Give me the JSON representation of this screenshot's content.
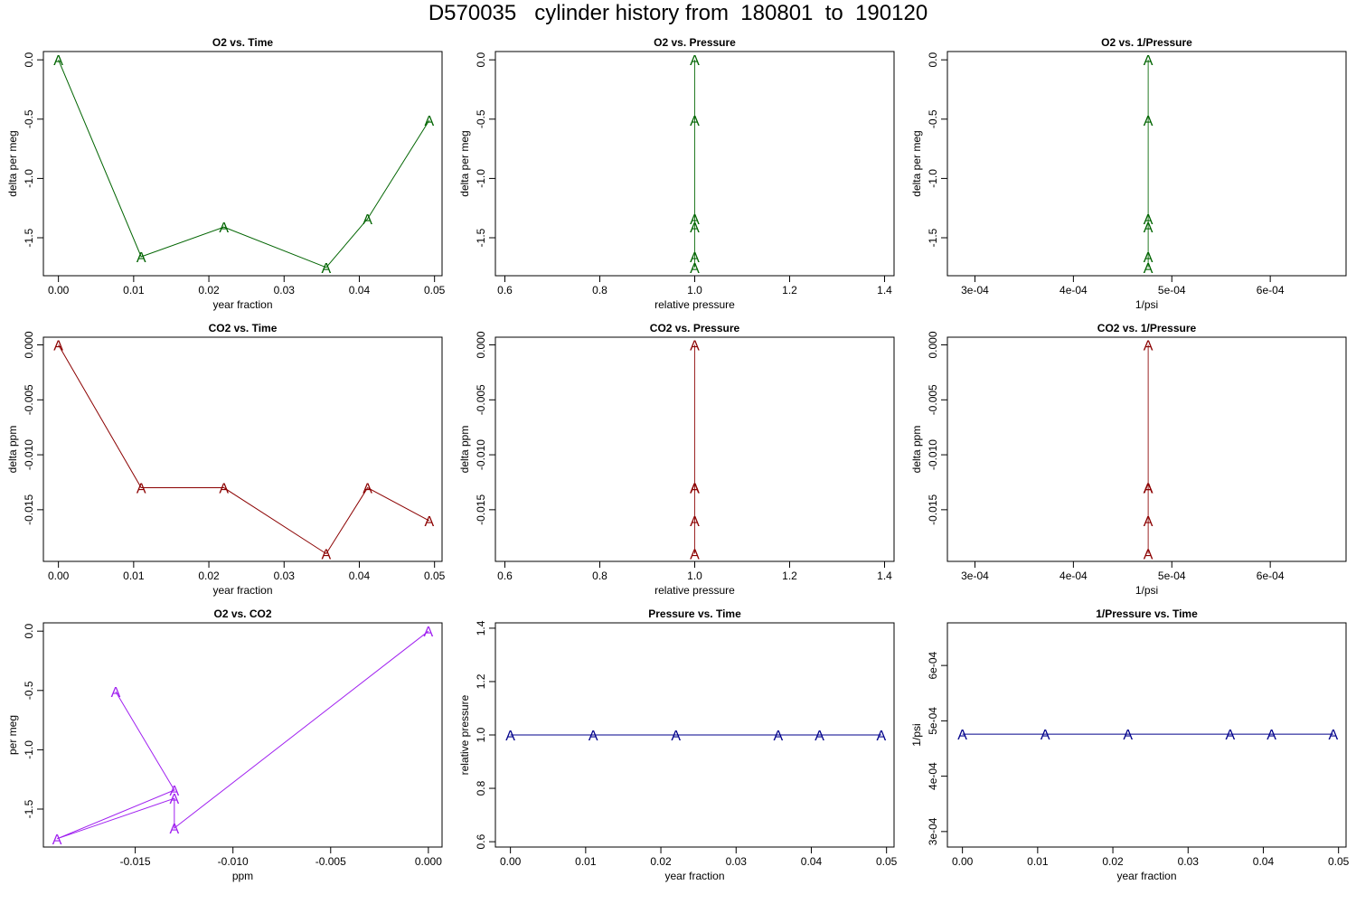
{
  "title": "D570035   cylinder history from  180801  to  190120",
  "colors": {
    "o2": "#006400",
    "co2": "#8b0000",
    "o2co2": "#a020f0",
    "pressure": "#00008b",
    "axis": "#000000"
  },
  "chart_data": [
    {
      "type": "scatter",
      "title": "O2 vs. Time",
      "xlabel": "year fraction",
      "ylabel": "delta per meg",
      "xlim": [
        -0.002,
        0.051
      ],
      "ylim": [
        -1.82,
        0.07
      ],
      "xticks": [
        {
          "v": 0.0,
          "label": "0.00"
        },
        {
          "v": 0.01,
          "label": "0.01"
        },
        {
          "v": 0.02,
          "label": "0.02"
        },
        {
          "v": 0.03,
          "label": "0.03"
        },
        {
          "v": 0.04,
          "label": "0.04"
        },
        {
          "v": 0.05,
          "label": "0.05"
        }
      ],
      "yticks": [
        {
          "v": 0.0,
          "label": "0.0"
        },
        {
          "v": -0.5,
          "label": "-0.5"
        },
        {
          "v": -1.0,
          "label": "-1.0"
        },
        {
          "v": -1.5,
          "label": "-1.5"
        }
      ],
      "marker": "A",
      "color_key": "o2",
      "x": [
        0.0,
        0.011,
        0.022,
        0.0356,
        0.0411,
        0.0493
      ],
      "y": [
        0.0,
        -1.66,
        -1.41,
        -1.75,
        -1.34,
        -0.51
      ]
    },
    {
      "type": "scatter",
      "title": "O2 vs. Pressure",
      "xlabel": "relative pressure",
      "ylabel": "delta per meg",
      "xlim": [
        0.58,
        1.42
      ],
      "ylim": [
        -1.82,
        0.07
      ],
      "xticks": [
        {
          "v": 0.6,
          "label": "0.6"
        },
        {
          "v": 0.8,
          "label": "0.8"
        },
        {
          "v": 1.0,
          "label": "1.0"
        },
        {
          "v": 1.2,
          "label": "1.2"
        },
        {
          "v": 1.4,
          "label": "1.4"
        }
      ],
      "yticks": [
        {
          "v": 0.0,
          "label": "0.0"
        },
        {
          "v": -0.5,
          "label": "-0.5"
        },
        {
          "v": -1.0,
          "label": "-1.0"
        },
        {
          "v": -1.5,
          "label": "-1.5"
        }
      ],
      "marker": "A",
      "color_key": "o2",
      "x": [
        1.0,
        1.0,
        1.0,
        1.0,
        1.0,
        1.0
      ],
      "y": [
        0.0,
        -1.66,
        -1.41,
        -1.75,
        -1.34,
        -0.51
      ]
    },
    {
      "type": "scatter",
      "title": "O2 vs. 1/Pressure",
      "xlabel": "1/psi",
      "ylabel": "delta per meg",
      "xlim": [
        0.000272,
        0.000677
      ],
      "ylim": [
        -1.82,
        0.07
      ],
      "xticks": [
        {
          "v": 0.0003,
          "label": "3e-04"
        },
        {
          "v": 0.0004,
          "label": "4e-04"
        },
        {
          "v": 0.0005,
          "label": "5e-04"
        },
        {
          "v": 0.0006,
          "label": "6e-04"
        }
      ],
      "yticks": [
        {
          "v": 0.0,
          "label": "0.0"
        },
        {
          "v": -0.5,
          "label": "-0.5"
        },
        {
          "v": -1.0,
          "label": "-1.0"
        },
        {
          "v": -1.5,
          "label": "-1.5"
        }
      ],
      "marker": "A",
      "color_key": "o2",
      "x": [
        0.000476,
        0.000476,
        0.000476,
        0.000476,
        0.000476,
        0.000476
      ],
      "y": [
        0.0,
        -1.66,
        -1.41,
        -1.75,
        -1.34,
        -0.51
      ]
    },
    {
      "type": "scatter",
      "title": "CO2 vs. Time",
      "xlabel": "year fraction",
      "ylabel": "delta ppm",
      "xlim": [
        -0.002,
        0.051
      ],
      "ylim": [
        -0.0197,
        0.0007
      ],
      "xticks": [
        {
          "v": 0.0,
          "label": "0.00"
        },
        {
          "v": 0.01,
          "label": "0.01"
        },
        {
          "v": 0.02,
          "label": "0.02"
        },
        {
          "v": 0.03,
          "label": "0.03"
        },
        {
          "v": 0.04,
          "label": "0.04"
        },
        {
          "v": 0.05,
          "label": "0.05"
        }
      ],
      "yticks": [
        {
          "v": 0.0,
          "label": "0.000"
        },
        {
          "v": -0.005,
          "label": "-0.005"
        },
        {
          "v": -0.01,
          "label": "-0.010"
        },
        {
          "v": -0.015,
          "label": "-0.015"
        }
      ],
      "marker": "A",
      "color_key": "co2",
      "x": [
        0.0,
        0.011,
        0.022,
        0.0356,
        0.0411,
        0.0493
      ],
      "y": [
        0.0,
        -0.013,
        -0.013,
        -0.019,
        -0.013,
        -0.016
      ]
    },
    {
      "type": "scatter",
      "title": "CO2 vs. Pressure",
      "xlabel": "relative pressure",
      "ylabel": "delta ppm",
      "xlim": [
        0.58,
        1.42
      ],
      "ylim": [
        -0.0197,
        0.0007
      ],
      "xticks": [
        {
          "v": 0.6,
          "label": "0.6"
        },
        {
          "v": 0.8,
          "label": "0.8"
        },
        {
          "v": 1.0,
          "label": "1.0"
        },
        {
          "v": 1.2,
          "label": "1.2"
        },
        {
          "v": 1.4,
          "label": "1.4"
        }
      ],
      "yticks": [
        {
          "v": 0.0,
          "label": "0.000"
        },
        {
          "v": -0.005,
          "label": "-0.005"
        },
        {
          "v": -0.01,
          "label": "-0.010"
        },
        {
          "v": -0.015,
          "label": "-0.015"
        }
      ],
      "marker": "A",
      "color_key": "co2",
      "x": [
        1.0,
        1.0,
        1.0,
        1.0,
        1.0,
        1.0
      ],
      "y": [
        0.0,
        -0.013,
        -0.013,
        -0.019,
        -0.013,
        -0.016
      ]
    },
    {
      "type": "scatter",
      "title": "CO2 vs. 1/Pressure",
      "xlabel": "1/psi",
      "ylabel": "delta ppm",
      "xlim": [
        0.000272,
        0.000677
      ],
      "ylim": [
        -0.0197,
        0.0007
      ],
      "xticks": [
        {
          "v": 0.0003,
          "label": "3e-04"
        },
        {
          "v": 0.0004,
          "label": "4e-04"
        },
        {
          "v": 0.0005,
          "label": "5e-04"
        },
        {
          "v": 0.0006,
          "label": "6e-04"
        }
      ],
      "yticks": [
        {
          "v": 0.0,
          "label": "0.000"
        },
        {
          "v": -0.005,
          "label": "-0.005"
        },
        {
          "v": -0.01,
          "label": "-0.010"
        },
        {
          "v": -0.015,
          "label": "-0.015"
        }
      ],
      "marker": "A",
      "color_key": "co2",
      "x": [
        0.000476,
        0.000476,
        0.000476,
        0.000476,
        0.000476,
        0.000476
      ],
      "y": [
        0.0,
        -0.013,
        -0.013,
        -0.019,
        -0.013,
        -0.016
      ]
    },
    {
      "type": "scatter",
      "title": "O2 vs. CO2",
      "xlabel": "ppm",
      "ylabel": "per meg",
      "xlim": [
        -0.0197,
        0.0007
      ],
      "ylim": [
        -1.82,
        0.07
      ],
      "xticks": [
        {
          "v": -0.015,
          "label": "-0.015"
        },
        {
          "v": -0.01,
          "label": "-0.010"
        },
        {
          "v": -0.005,
          "label": "-0.005"
        },
        {
          "v": 0.0,
          "label": "0.000"
        }
      ],
      "yticks": [
        {
          "v": 0.0,
          "label": "0.0"
        },
        {
          "v": -0.5,
          "label": "-0.5"
        },
        {
          "v": -1.0,
          "label": "-1.0"
        },
        {
          "v": -1.5,
          "label": "-1.5"
        }
      ],
      "marker": "A",
      "color_key": "o2co2",
      "x": [
        0.0,
        -0.013,
        -0.013,
        -0.019,
        -0.013,
        -0.016
      ],
      "y": [
        0.0,
        -1.66,
        -1.41,
        -1.75,
        -1.34,
        -0.51
      ]
    },
    {
      "type": "scatter",
      "title": "Pressure vs. Time",
      "xlabel": "year fraction",
      "ylabel": "relative pressure",
      "xlim": [
        -0.002,
        0.051
      ],
      "ylim": [
        0.58,
        1.42
      ],
      "xticks": [
        {
          "v": 0.0,
          "label": "0.00"
        },
        {
          "v": 0.01,
          "label": "0.01"
        },
        {
          "v": 0.02,
          "label": "0.02"
        },
        {
          "v": 0.03,
          "label": "0.03"
        },
        {
          "v": 0.04,
          "label": "0.04"
        },
        {
          "v": 0.05,
          "label": "0.05"
        }
      ],
      "yticks": [
        {
          "v": 0.6,
          "label": "0.6"
        },
        {
          "v": 0.8,
          "label": "0.8"
        },
        {
          "v": 1.0,
          "label": "1.0"
        },
        {
          "v": 1.2,
          "label": "1.2"
        },
        {
          "v": 1.4,
          "label": "1.4"
        }
      ],
      "marker": "A",
      "color_key": "pressure",
      "x": [
        0.0,
        0.011,
        0.022,
        0.0356,
        0.0411,
        0.0493
      ],
      "y": [
        1.0,
        1.0,
        1.0,
        1.0,
        1.0,
        1.0
      ]
    },
    {
      "type": "scatter",
      "title": "1/Pressure vs. Time",
      "xlabel": "year fraction",
      "ylabel": "1/psi",
      "xlim": [
        -0.002,
        0.051
      ],
      "ylim": [
        0.000272,
        0.000677
      ],
      "xticks": [
        {
          "v": 0.0,
          "label": "0.00"
        },
        {
          "v": 0.01,
          "label": "0.01"
        },
        {
          "v": 0.02,
          "label": "0.02"
        },
        {
          "v": 0.03,
          "label": "0.03"
        },
        {
          "v": 0.04,
          "label": "0.04"
        },
        {
          "v": 0.05,
          "label": "0.05"
        }
      ],
      "yticks": [
        {
          "v": 0.0003,
          "label": "3e-04"
        },
        {
          "v": 0.0004,
          "label": "4e-04"
        },
        {
          "v": 0.0005,
          "label": "5e-04"
        },
        {
          "v": 0.0006,
          "label": "6e-04"
        }
      ],
      "marker": "A",
      "color_key": "pressure",
      "x": [
        0.0,
        0.011,
        0.022,
        0.0356,
        0.0411,
        0.0493
      ],
      "y": [
        0.000476,
        0.000476,
        0.000476,
        0.000476,
        0.000476,
        0.000476
      ]
    }
  ]
}
